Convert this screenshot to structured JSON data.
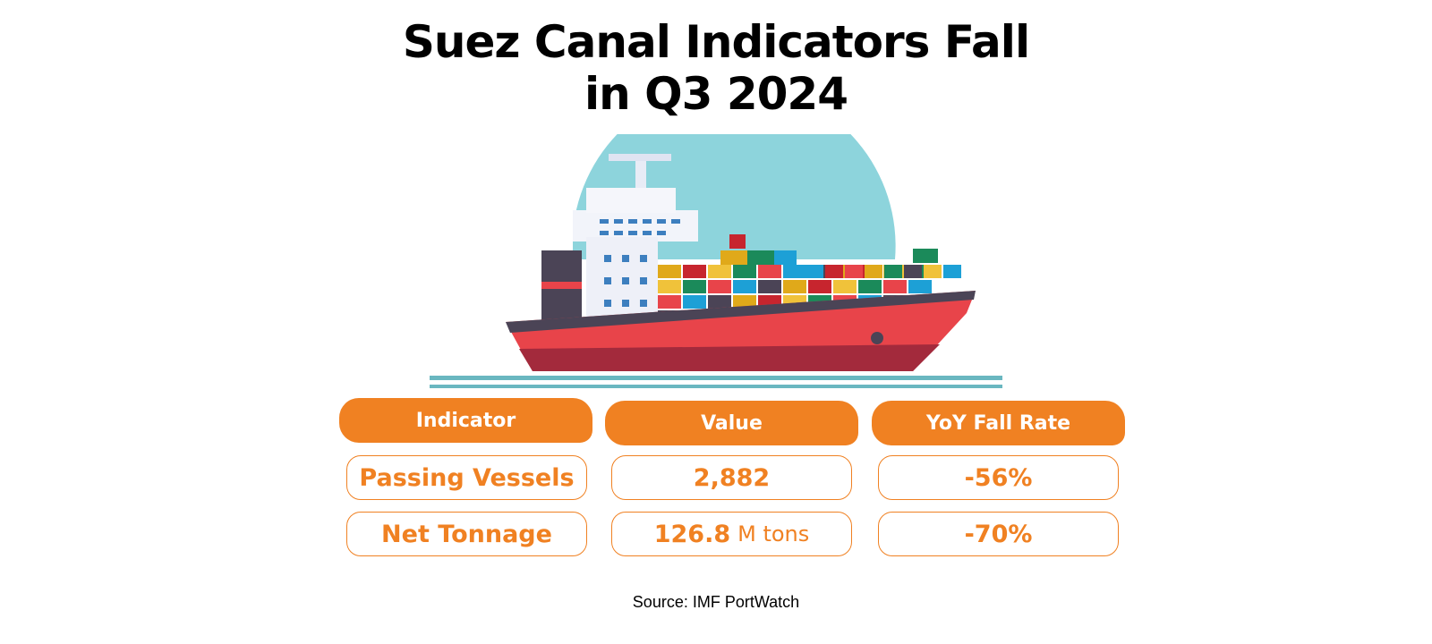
{
  "title_line1": "Suez Canal Indicators Fall",
  "title_line2": "in Q3 2024",
  "table": {
    "headers": [
      "Indicator",
      "Value",
      "YoY Fall Rate"
    ],
    "rows": [
      {
        "indicator": "Passing Vessels",
        "value": "2,882",
        "unit": "",
        "fall_rate": "-56%"
      },
      {
        "indicator": "Net Tonnage",
        "value": "126.8",
        "unit": "M tons",
        "fall_rate": "-70%"
      }
    ]
  },
  "source": "Source: IMF PortWatch",
  "colors": {
    "accent": "#f08122",
    "hull": "#e8444a",
    "sky_circle": "#8dd4dc"
  }
}
